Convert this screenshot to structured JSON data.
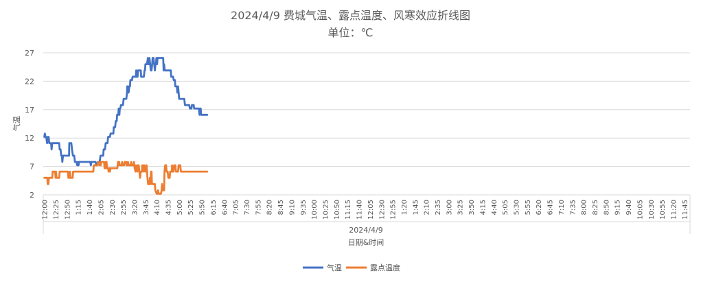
{
  "chart_data": {
    "type": "line",
    "title": "2024/4/9 费城气温、露点温度、风寒效应折线图",
    "subtitle": "单位：℃",
    "xlabel": "日期&时间",
    "x_group_label": "2024/4/9",
    "ylabel": "气温",
    "ylim": [
      2,
      27
    ],
    "yticks": [
      2,
      7,
      12,
      17,
      22,
      27
    ],
    "grid": "horizontal",
    "legend_position": "bottom",
    "x_tick_labels": [
      "12:00",
      "12:25",
      "12:50",
      "1:15",
      "1:40",
      "2:05",
      "2:30",
      "2:55",
      "3:20",
      "3:45",
      "4:10",
      "4:35",
      "5:00",
      "5:25",
      "5:50",
      "6:15",
      "6:40",
      "7:05",
      "7:30",
      "7:55",
      "8:20",
      "8:45",
      "9:10",
      "9:35",
      "10:00",
      "10:25",
      "10:50",
      "11:15",
      "11:40",
      "12:05",
      "12:30",
      "12:55",
      "1:20",
      "1:45",
      "2:10",
      "2:35",
      "3:00",
      "3:25",
      "3:50",
      "4:15",
      "4:40",
      "5:05",
      "5:30",
      "5:55",
      "6:20",
      "6:45",
      "7:10",
      "7:35",
      "8:00",
      "8:25",
      "8:50",
      "9:15",
      "9:40",
      "10:05",
      "10:30",
      "10:55",
      "11:20",
      "11:45"
    ],
    "series": [
      {
        "name": "气温",
        "color": "#4472C4",
        "points": [
          [
            0,
            12.2
          ],
          [
            0.2,
            12.8
          ],
          [
            0.5,
            12.2
          ],
          [
            0.8,
            12.2
          ],
          [
            1.2,
            11.1
          ],
          [
            1.6,
            12.2
          ],
          [
            1.9,
            12.2
          ],
          [
            2.2,
            11.1
          ],
          [
            2.7,
            11.1
          ],
          [
            3.0,
            11.1
          ],
          [
            3.2,
            10.0
          ],
          [
            3.5,
            11.1
          ],
          [
            4.5,
            11.1
          ],
          [
            5.5,
            11.1
          ],
          [
            6.2,
            11.1
          ],
          [
            6.6,
            11.1
          ],
          [
            6.8,
            10.0
          ],
          [
            7.2,
            10.0
          ],
          [
            7.5,
            8.9
          ],
          [
            7.8,
            8.9
          ],
          [
            8.0,
            7.8
          ],
          [
            8.3,
            8.9
          ],
          [
            9.5,
            8.9
          ],
          [
            10.7,
            8.9
          ],
          [
            11.0,
            8.9
          ],
          [
            11.1,
            11.1
          ],
          [
            12.0,
            11.1
          ],
          [
            12.3,
            10.0
          ],
          [
            12.7,
            8.9
          ],
          [
            13.3,
            8.9
          ],
          [
            13.6,
            7.8
          ],
          [
            14.3,
            7.8
          ],
          [
            14.6,
            7.2
          ],
          [
            14.9,
            7.8
          ],
          [
            15.2,
            7.2
          ],
          [
            15.5,
            7.8
          ],
          [
            18.5,
            7.8
          ],
          [
            20.4,
            7.8
          ],
          [
            20.7,
            7.2
          ],
          [
            21.0,
            7.8
          ],
          [
            22.0,
            7.8
          ],
          [
            22.8,
            7.8
          ],
          [
            23.1,
            7.2
          ],
          [
            23.5,
            7.2
          ],
          [
            23.8,
            7.8
          ],
          [
            24.6,
            7.8
          ],
          [
            25.0,
            8.9
          ],
          [
            25.5,
            8.9
          ],
          [
            26.2,
            8.9
          ],
          [
            26.4,
            10.0
          ],
          [
            27.0,
            10.0
          ],
          [
            27.3,
            11.1
          ],
          [
            28.1,
            11.1
          ],
          [
            28.4,
            12.2
          ],
          [
            29.2,
            12.2
          ],
          [
            29.5,
            12.8
          ],
          [
            30.7,
            12.8
          ],
          [
            30.9,
            13.9
          ],
          [
            31.5,
            13.9
          ],
          [
            31.8,
            15.0
          ],
          [
            32.2,
            15.0
          ],
          [
            32.4,
            16.1
          ],
          [
            32.9,
            16.1
          ],
          [
            33.1,
            17.2
          ],
          [
            33.4,
            16.1
          ],
          [
            33.6,
            17.2
          ],
          [
            33.8,
            17.2
          ],
          [
            34.1,
            17.8
          ],
          [
            35.0,
            17.8
          ],
          [
            35.3,
            18.9
          ],
          [
            36.5,
            18.9
          ],
          [
            36.8,
            20.0
          ],
          [
            36.9,
            21.1
          ],
          [
            37.2,
            21.1
          ],
          [
            37.5,
            20.0
          ],
          [
            37.8,
            21.1
          ],
          [
            38.1,
            21.1
          ],
          [
            38.3,
            22.2
          ],
          [
            39.0,
            22.2
          ],
          [
            39.3,
            22.8
          ],
          [
            40.7,
            22.8
          ],
          [
            40.9,
            23.9
          ],
          [
            41.0,
            22.8
          ],
          [
            41.5,
            22.8
          ],
          [
            41.7,
            23.9
          ],
          [
            42.9,
            23.9
          ],
          [
            43.1,
            22.8
          ],
          [
            44.3,
            22.8
          ],
          [
            44.6,
            23.9
          ],
          [
            44.8,
            23.9
          ],
          [
            45.0,
            25.0
          ],
          [
            45.7,
            25.0
          ],
          [
            45.9,
            25.6
          ],
          [
            46.1,
            26.1
          ],
          [
            46.3,
            25.0
          ],
          [
            46.6,
            25.0
          ],
          [
            46.8,
            26.1
          ],
          [
            47.1,
            25.0
          ],
          [
            47.4,
            23.9
          ],
          [
            47.7,
            23.9
          ],
          [
            48.0,
            25.0
          ],
          [
            48.2,
            26.1
          ],
          [
            48.6,
            26.1
          ],
          [
            48.9,
            25.0
          ],
          [
            49.2,
            23.9
          ],
          [
            49.5,
            25.0
          ],
          [
            49.7,
            25.0
          ],
          [
            49.9,
            26.1
          ],
          [
            50.2,
            25.0
          ],
          [
            50.4,
            26.1
          ],
          [
            51.7,
            26.1
          ],
          [
            52.9,
            26.1
          ],
          [
            53.1,
            23.9
          ],
          [
            53.3,
            25.0
          ],
          [
            53.6,
            23.9
          ],
          [
            56.3,
            23.9
          ],
          [
            56.5,
            22.8
          ],
          [
            57.3,
            22.8
          ],
          [
            57.6,
            22.2
          ],
          [
            58.1,
            22.2
          ],
          [
            58.3,
            21.1
          ],
          [
            59.0,
            21.1
          ],
          [
            59.2,
            20.0
          ],
          [
            59.5,
            21.1
          ],
          [
            59.8,
            20.0
          ],
          [
            60.0,
            18.9
          ],
          [
            62.3,
            18.9
          ],
          [
            62.6,
            17.8
          ],
          [
            64.5,
            17.8
          ],
          [
            64.8,
            17.2
          ],
          [
            65.5,
            17.2
          ],
          [
            65.7,
            17.8
          ],
          [
            66.5,
            17.8
          ],
          [
            66.7,
            17.2
          ],
          [
            68.8,
            17.2
          ],
          [
            69.1,
            16.1
          ],
          [
            69.3,
            17.2
          ],
          [
            69.6,
            17.2
          ],
          [
            69.8,
            16.1
          ],
          [
            72.5,
            16.1
          ]
        ]
      },
      {
        "name": "露点温度",
        "color": "#ED7D31",
        "points": [
          [
            0,
            5.0
          ],
          [
            1.3,
            5.0
          ],
          [
            1.5,
            3.9
          ],
          [
            1.8,
            3.9
          ],
          [
            2.0,
            5.0
          ],
          [
            3.5,
            5.0
          ],
          [
            3.7,
            6.1
          ],
          [
            4.8,
            6.1
          ],
          [
            5.0,
            5.0
          ],
          [
            5.2,
            6.1
          ],
          [
            5.4,
            5.0
          ],
          [
            6.6,
            5.0
          ],
          [
            6.8,
            6.1
          ],
          [
            10.5,
            6.1
          ],
          [
            10.7,
            5.0
          ],
          [
            11.2,
            5.0
          ],
          [
            11.4,
            6.1
          ],
          [
            11.6,
            5.0
          ],
          [
            12.6,
            5.0
          ],
          [
            12.8,
            6.1
          ],
          [
            21.8,
            6.1
          ],
          [
            21.9,
            6.7
          ],
          [
            22.0,
            7.2
          ],
          [
            23.7,
            7.2
          ],
          [
            23.9,
            7.8
          ],
          [
            24.3,
            7.8
          ],
          [
            24.6,
            7.2
          ],
          [
            25.1,
            7.2
          ],
          [
            25.3,
            7.8
          ],
          [
            26.6,
            7.8
          ],
          [
            26.8,
            6.7
          ],
          [
            27.2,
            6.7
          ],
          [
            27.4,
            7.8
          ],
          [
            27.7,
            7.8
          ],
          [
            27.9,
            6.7
          ],
          [
            28.4,
            6.7
          ],
          [
            28.6,
            6.1
          ],
          [
            28.9,
            6.7
          ],
          [
            29.2,
            6.1
          ],
          [
            29.5,
            6.7
          ],
          [
            32.5,
            6.7
          ],
          [
            32.8,
            7.8
          ],
          [
            33.0,
            7.2
          ],
          [
            33.3,
            7.8
          ],
          [
            33.6,
            7.2
          ],
          [
            34.4,
            7.2
          ],
          [
            34.6,
            7.8
          ],
          [
            35.0,
            7.2
          ],
          [
            35.5,
            7.2
          ],
          [
            35.8,
            7.8
          ],
          [
            36.4,
            7.8
          ],
          [
            36.6,
            7.2
          ],
          [
            37.0,
            7.2
          ],
          [
            37.2,
            7.8
          ],
          [
            37.6,
            7.2
          ],
          [
            38.4,
            7.2
          ],
          [
            38.7,
            7.8
          ],
          [
            38.9,
            7.2
          ],
          [
            39.7,
            7.2
          ],
          [
            39.9,
            7.8
          ],
          [
            40.2,
            6.7
          ],
          [
            40.6,
            6.1
          ],
          [
            40.8,
            7.2
          ],
          [
            41.0,
            6.7
          ],
          [
            41.4,
            6.1
          ],
          [
            41.6,
            7.2
          ],
          [
            42.0,
            7.2
          ],
          [
            42.3,
            6.1
          ],
          [
            42.6,
            5.0
          ],
          [
            42.9,
            6.1
          ],
          [
            43.4,
            6.1
          ],
          [
            43.6,
            7.2
          ],
          [
            44.0,
            7.2
          ],
          [
            44.3,
            6.1
          ],
          [
            44.6,
            7.2
          ],
          [
            45.0,
            6.1
          ],
          [
            45.3,
            6.1
          ],
          [
            45.5,
            7.2
          ],
          [
            45.9,
            5.0
          ],
          [
            46.2,
            3.9
          ],
          [
            46.8,
            3.9
          ],
          [
            47.0,
            5.0
          ],
          [
            47.2,
            3.9
          ],
          [
            47.5,
            6.1
          ],
          [
            47.7,
            6.1
          ],
          [
            47.9,
            3.9
          ],
          [
            49.2,
            3.9
          ],
          [
            49.4,
            2.8
          ],
          [
            50.0,
            2.2
          ],
          [
            50.4,
            2.2
          ],
          [
            50.6,
            2.8
          ],
          [
            50.9,
            2.2
          ],
          [
            51.9,
            2.2
          ],
          [
            52.2,
            2.8
          ],
          [
            52.4,
            3.9
          ],
          [
            52.6,
            2.8
          ],
          [
            53.3,
            2.8
          ],
          [
            53.5,
            6.1
          ],
          [
            53.8,
            7.2
          ],
          [
            54.2,
            7.2
          ],
          [
            54.4,
            6.1
          ],
          [
            54.9,
            6.1
          ],
          [
            55.2,
            5.0
          ],
          [
            55.8,
            5.0
          ],
          [
            56.0,
            6.1
          ],
          [
            56.7,
            6.1
          ],
          [
            56.9,
            7.2
          ],
          [
            57.2,
            6.1
          ],
          [
            57.5,
            6.1
          ],
          [
            57.8,
            7.2
          ],
          [
            58.0,
            6.7
          ],
          [
            58.3,
            7.2
          ],
          [
            58.6,
            6.1
          ],
          [
            59.5,
            6.1
          ],
          [
            59.8,
            7.2
          ],
          [
            60.5,
            7.2
          ],
          [
            60.8,
            6.1
          ],
          [
            72.5,
            6.1
          ]
        ]
      }
    ]
  }
}
